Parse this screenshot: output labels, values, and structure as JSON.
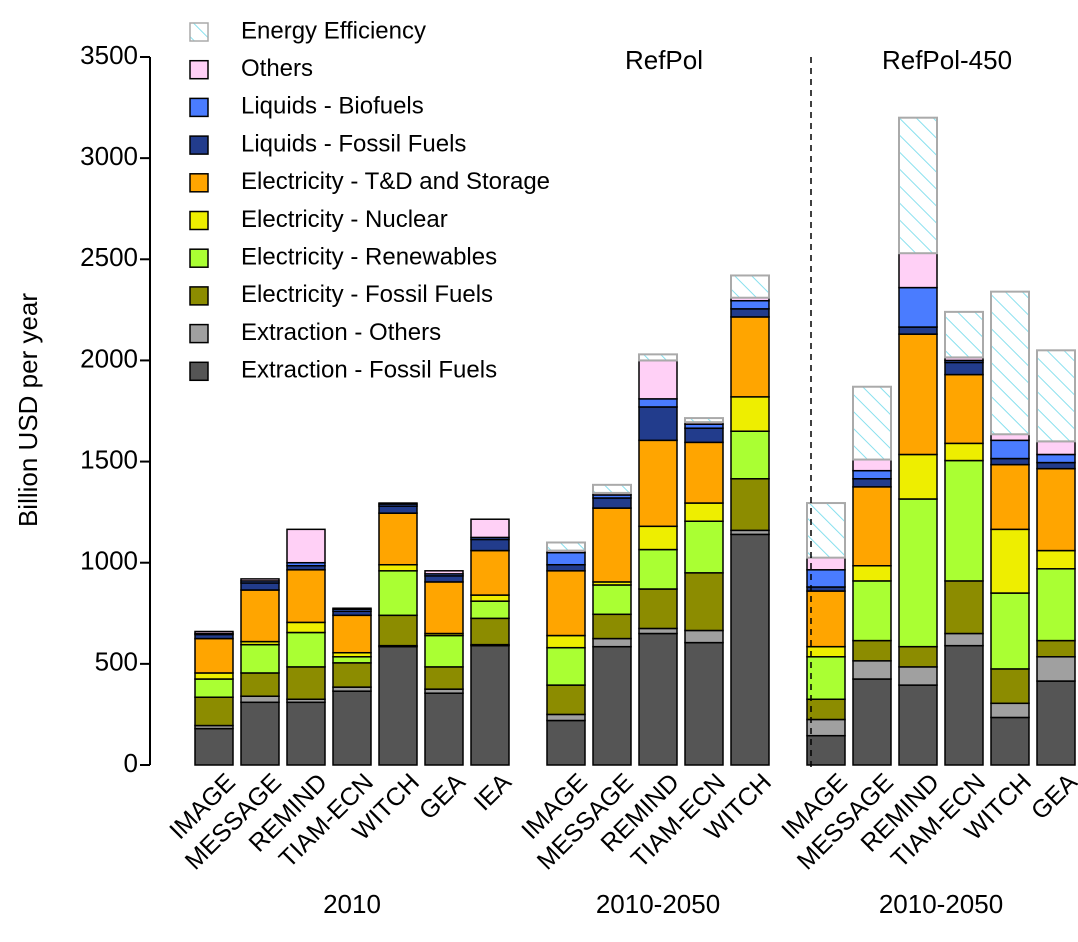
{
  "chart_data": {
    "type": "bar",
    "stacked": true,
    "ylabel": "Billion USD per year",
    "ylim": [
      0,
      3500
    ],
    "yticks": [
      0,
      500,
      1000,
      1500,
      2000,
      2500,
      3000,
      3500
    ],
    "legend": "upper left",
    "categories": [
      "IMAGE",
      "MESSAGE",
      "REMIND",
      "TIAM-ECN",
      "WITCH",
      "GEA",
      "IEA",
      null,
      "IMAGE",
      "MESSAGE",
      "REMIND",
      "TIAM-ECN",
      "WITCH",
      null,
      "IMAGE",
      "MESSAGE",
      "REMIND",
      "TIAM-ECN",
      "WITCH",
      "GEA"
    ],
    "group_labels": [
      "2010",
      "2010-2050",
      "2010-2050"
    ],
    "scenario_labels": [
      "RefPol",
      "RefPol-450"
    ],
    "series": [
      {
        "name": "Extraction - Fossil Fuels",
        "color": "#555555",
        "values": [
          180,
          310,
          310,
          365,
          585,
          355,
          590,
          null,
          220,
          585,
          650,
          605,
          1140,
          null,
          145,
          425,
          395,
          590,
          235,
          415
        ]
      },
      {
        "name": "Extraction - Others",
        "color": "#a0a0a0",
        "values": [
          15,
          30,
          15,
          20,
          5,
          20,
          5,
          null,
          30,
          40,
          25,
          60,
          20,
          null,
          80,
          90,
          90,
          60,
          70,
          120
        ]
      },
      {
        "name": "Electricity - Fossil Fuels",
        "color": "#8c8c00",
        "values": [
          140,
          115,
          160,
          120,
          150,
          110,
          130,
          null,
          145,
          120,
          195,
          285,
          255,
          null,
          100,
          100,
          100,
          260,
          170,
          80
        ]
      },
      {
        "name": "Electricity - Renewables",
        "color": "#aaff33",
        "values": [
          90,
          140,
          170,
          30,
          220,
          155,
          85,
          null,
          185,
          145,
          195,
          255,
          235,
          null,
          210,
          295,
          730,
          595,
          375,
          355
        ]
      },
      {
        "name": "Electricity - Nuclear",
        "color": "#eeee00",
        "values": [
          30,
          15,
          50,
          20,
          30,
          10,
          30,
          null,
          60,
          15,
          115,
          90,
          170,
          null,
          50,
          75,
          220,
          85,
          315,
          90
        ]
      },
      {
        "name": "Electricity - T&D and Storage",
        "color": "#ffa500",
        "values": [
          170,
          255,
          260,
          185,
          255,
          255,
          220,
          null,
          320,
          365,
          425,
          300,
          395,
          null,
          275,
          390,
          595,
          340,
          320,
          405
        ]
      },
      {
        "name": "Liquids - Fossil Fuels",
        "color": "#223c8c",
        "values": [
          20,
          35,
          20,
          20,
          35,
          30,
          55,
          null,
          30,
          50,
          165,
          70,
          40,
          null,
          20,
          40,
          35,
          60,
          30,
          30
        ]
      },
      {
        "name": "Liquids - Biofuels",
        "color": "#4a7cff",
        "values": [
          5,
          10,
          15,
          10,
          10,
          10,
          10,
          null,
          60,
          15,
          40,
          20,
          40,
          null,
          85,
          40,
          195,
          10,
          90,
          40
        ]
      },
      {
        "name": "Others",
        "color": "#ffd0f6",
        "values": [
          10,
          10,
          165,
          5,
          5,
          15,
          90,
          null,
          10,
          10,
          190,
          10,
          15,
          null,
          60,
          55,
          170,
          15,
          30,
          65
        ]
      },
      {
        "name": "Energy Efficiency",
        "color": "#88e0ee",
        "pattern": "hatch",
        "values": [
          0,
          0,
          0,
          0,
          0,
          0,
          0,
          null,
          40,
          40,
          30,
          20,
          110,
          null,
          270,
          360,
          670,
          225,
          705,
          450
        ]
      }
    ]
  }
}
